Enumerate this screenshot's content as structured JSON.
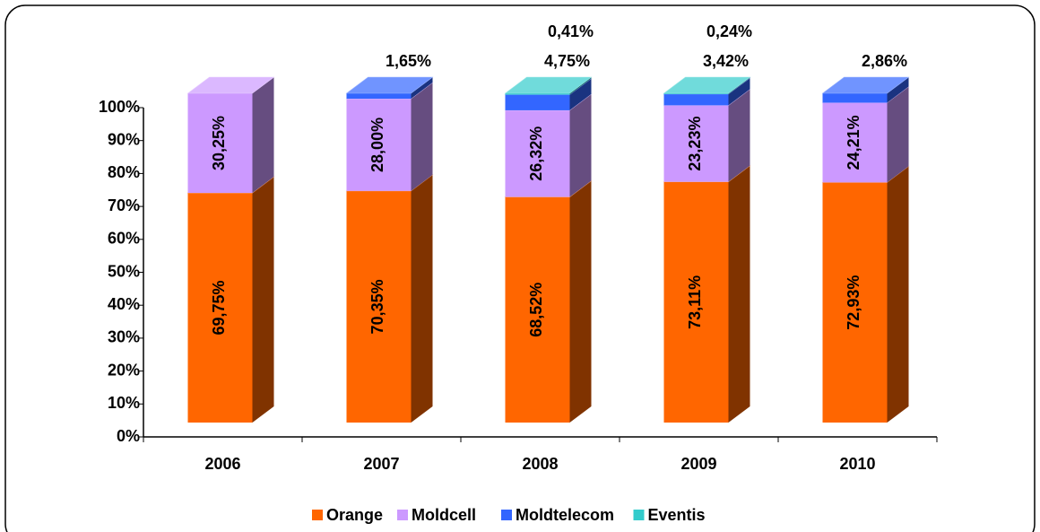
{
  "chart_data": {
    "type": "bar3d_stacked",
    "categories": [
      "2006",
      "2007",
      "2008",
      "2009",
      "2010"
    ],
    "series": [
      {
        "name": "Orange",
        "color": "#ff6600",
        "values": [
          69.75,
          70.35,
          68.52,
          73.11,
          72.93
        ],
        "value_labels": [
          "69,75%",
          "70,35%",
          "68,52%",
          "73,11%",
          "72,93%"
        ]
      },
      {
        "name": "Moldcell",
        "color": "#cc99ff",
        "values": [
          30.25,
          28.0,
          26.32,
          23.23,
          24.21
        ],
        "value_labels": [
          "30,25%",
          "28,00%",
          "26,32%",
          "23,23%",
          "24,21%"
        ]
      },
      {
        "name": "Moldtelecom",
        "color": "#3366ff",
        "values": [
          null,
          1.65,
          4.75,
          3.42,
          2.86
        ],
        "value_labels": [
          null,
          "1,65%",
          "4,75%",
          "3,42%",
          "2,86%"
        ]
      },
      {
        "name": "Eventis",
        "color": "#33cccc",
        "label_color": "#33ccff",
        "values": [
          null,
          null,
          0.41,
          0.24,
          null
        ],
        "value_labels": [
          null,
          null,
          "0,41%",
          "0,24%",
          null
        ]
      }
    ],
    "ylim": [
      0,
      100
    ],
    "yticks": [
      {
        "value": 0,
        "label": "0%"
      },
      {
        "value": 10,
        "label": "10%"
      },
      {
        "value": 20,
        "label": "20%"
      },
      {
        "value": 30,
        "label": "30%"
      },
      {
        "value": 40,
        "label": "40%"
      },
      {
        "value": 50,
        "label": "50%"
      },
      {
        "value": 60,
        "label": "60%"
      },
      {
        "value": 70,
        "label": "70%"
      },
      {
        "value": 80,
        "label": "80%"
      },
      {
        "value": 90,
        "label": "90%"
      },
      {
        "value": 100,
        "label": "100%"
      }
    ],
    "legend": "bottom"
  }
}
